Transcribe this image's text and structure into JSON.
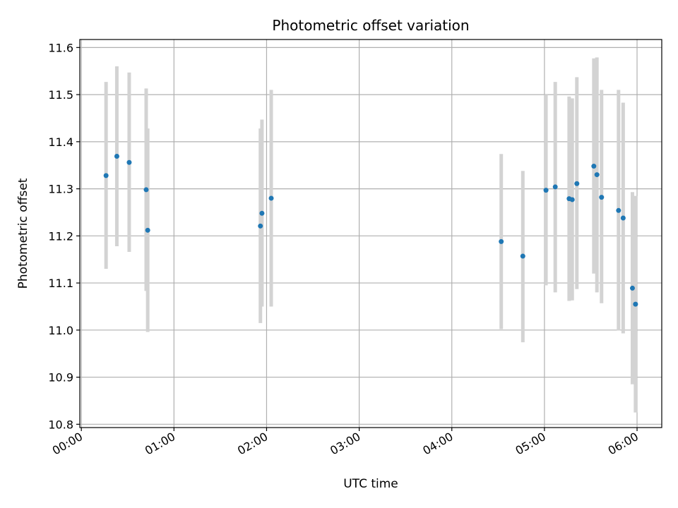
{
  "chart_data": {
    "type": "scatter",
    "title": "Photometric offset variation",
    "xlabel": "UTC time",
    "ylabel": "Photometric offset",
    "x_ticks": [
      "00:00",
      "01:00",
      "02:00",
      "03:00",
      "04:00",
      "05:00",
      "06:00"
    ],
    "y_ticks": [
      "10.8",
      "10.9",
      "11.0",
      "11.1",
      "11.2",
      "11.3",
      "11.4",
      "11.5",
      "11.6"
    ],
    "xlim": [
      "23:59",
      "06:16"
    ],
    "ylim": [
      10.793,
      11.617
    ],
    "grid": true,
    "colors": {
      "points": "#1f77b4",
      "errorbars": "#d3d3d3",
      "grid": "#b0b0b0"
    },
    "points": [
      {
        "x": "00:16",
        "y": 11.328,
        "y_low": 11.13,
        "y_high": 11.527
      },
      {
        "x": "00:23",
        "y": 11.369,
        "y_low": 11.178,
        "y_high": 11.56
      },
      {
        "x": "00:31",
        "y": 11.356,
        "y_low": 11.166,
        "y_high": 11.547
      },
      {
        "x": "00:42",
        "y": 11.298,
        "y_low": 11.083,
        "y_high": 11.513
      },
      {
        "x": "00:43",
        "y": 11.212,
        "y_low": 10.996,
        "y_high": 11.428
      },
      {
        "x": "01:56",
        "y": 11.221,
        "y_low": 11.015,
        "y_high": 11.428
      },
      {
        "x": "01:57",
        "y": 11.248,
        "y_low": 11.05,
        "y_high": 11.447
      },
      {
        "x": "02:03",
        "y": 11.28,
        "y_low": 11.05,
        "y_high": 11.51
      },
      {
        "x": "04:32",
        "y": 11.188,
        "y_low": 11.002,
        "y_high": 11.374
      },
      {
        "x": "04:46",
        "y": 11.157,
        "y_low": 10.974,
        "y_high": 11.338
      },
      {
        "x": "05:01",
        "y": 11.297,
        "y_low": 11.095,
        "y_high": 11.5
      },
      {
        "x": "05:07",
        "y": 11.304,
        "y_low": 11.08,
        "y_high": 11.527
      },
      {
        "x": "05:16",
        "y": 11.279,
        "y_low": 11.062,
        "y_high": 11.496
      },
      {
        "x": "05:18",
        "y": 11.277,
        "y_low": 11.063,
        "y_high": 11.492
      },
      {
        "x": "05:21",
        "y": 11.311,
        "y_low": 11.087,
        "y_high": 11.537
      },
      {
        "x": "05:32",
        "y": 11.348,
        "y_low": 11.12,
        "y_high": 11.577
      },
      {
        "x": "05:34",
        "y": 11.33,
        "y_low": 11.08,
        "y_high": 11.579
      },
      {
        "x": "05:37",
        "y": 11.282,
        "y_low": 11.057,
        "y_high": 11.51
      },
      {
        "x": "05:48",
        "y": 11.254,
        "y_low": 10.999,
        "y_high": 11.51
      },
      {
        "x": "05:51",
        "y": 11.238,
        "y_low": 10.993,
        "y_high": 11.483
      },
      {
        "x": "05:57",
        "y": 11.089,
        "y_low": 10.885,
        "y_high": 11.293
      },
      {
        "x": "05:59",
        "y": 11.055,
        "y_low": 10.825,
        "y_high": 11.285
      }
    ]
  }
}
